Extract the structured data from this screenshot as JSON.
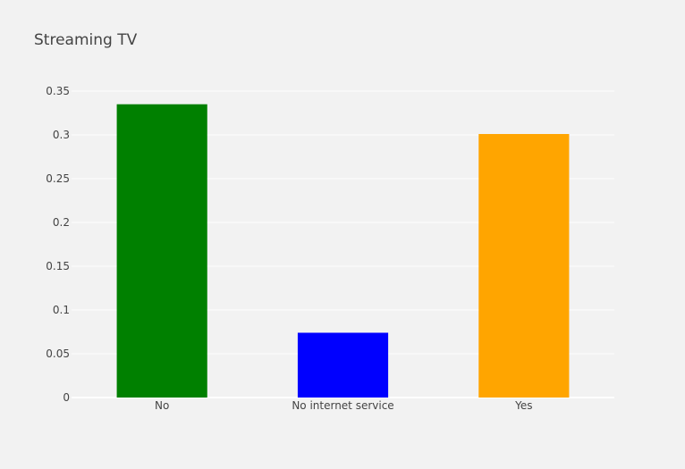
{
  "chart_data": {
    "type": "bar",
    "title": "Streaming TV",
    "xlabel": "",
    "ylabel": "",
    "categories": [
      "No",
      "No internet service",
      "Yes"
    ],
    "values": [
      0.335,
      0.074,
      0.301
    ],
    "colors": [
      "#008000",
      "#0000ff",
      "#ffa500"
    ],
    "ylim": [
      0,
      0.35
    ],
    "yticks": [
      0,
      0.05,
      0.1,
      0.15,
      0.2,
      0.25,
      0.3,
      0.35
    ],
    "ytick_labels": [
      "0",
      "0.05",
      "0.1",
      "0.15",
      "0.2",
      "0.25",
      "0.3",
      "0.35"
    ],
    "grid": true,
    "legend": "none"
  }
}
